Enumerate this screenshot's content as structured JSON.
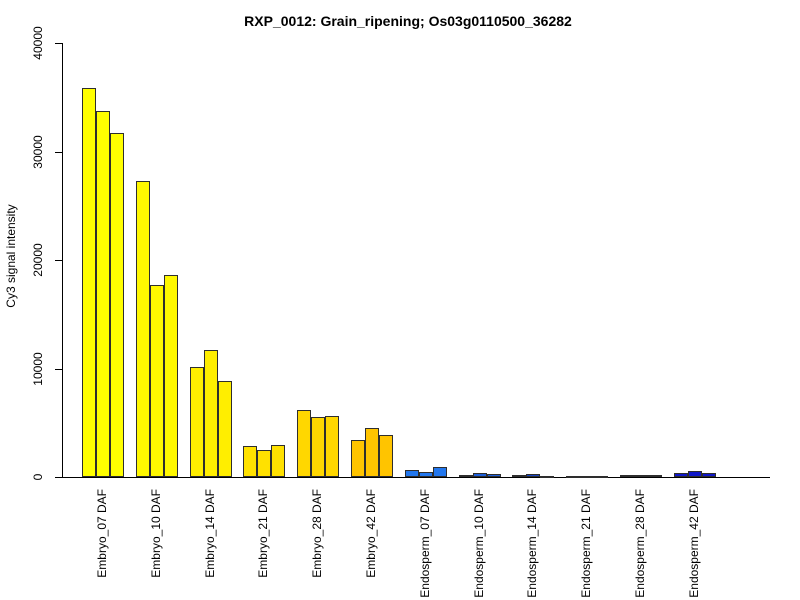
{
  "page": {
    "background": "#ffffff"
  },
  "chart_data": {
    "type": "bar",
    "title": "RXP_0012: Grain_ripening; Os03g0110500_36282",
    "ylabel": "Cy3 signal intensity",
    "xlabel": "",
    "ylim": [
      0,
      40000
    ],
    "yticks": [
      0,
      10000,
      20000,
      30000,
      40000
    ],
    "ytick_labels": [
      "0",
      "10000",
      "20000",
      "30000",
      "40000"
    ],
    "grid": false,
    "legend": "none",
    "axis_color": "#000000",
    "bar_border_color": "#2e2e2e",
    "bars_per_group": 3,
    "groups": [
      {
        "label": "Embryo_07 DAF",
        "color": "#FFFF00",
        "values": [
          35850,
          33700,
          31750
        ]
      },
      {
        "label": "Embryo_10 DAF",
        "color": "#FFF800",
        "values": [
          27300,
          17700,
          18600
        ]
      },
      {
        "label": "Embryo_14 DAF",
        "color": "#FFEE00",
        "values": [
          10100,
          11700,
          8850
        ]
      },
      {
        "label": "Embryo_21 DAF",
        "color": "#FFE100",
        "values": [
          2860,
          2450,
          2950
        ]
      },
      {
        "label": "Embryo_28 DAF",
        "color": "#FFD700",
        "values": [
          6180,
          5500,
          5650
        ]
      },
      {
        "label": "Embryo_42 DAF",
        "color": "#FFC400",
        "values": [
          3380,
          4490,
          3900
        ]
      },
      {
        "label": "Endosperm_07 DAF",
        "color": "#2277EE",
        "values": [
          670,
          460,
          900
        ]
      },
      {
        "label": "Endosperm_10 DAF",
        "color": "#1C5ED9",
        "values": [
          215,
          370,
          275
        ]
      },
      {
        "label": "Endosperm_14 DAF",
        "color": "#1743C0",
        "values": [
          150,
          280,
          110
        ]
      },
      {
        "label": "Endosperm_21 DAF",
        "color": "#161E6E",
        "values": [
          120,
          90,
          90
        ]
      },
      {
        "label": "Endosperm_28 DAF",
        "color": "#131FA6",
        "values": [
          230,
          180,
          180
        ]
      },
      {
        "label": "Endosperm_42 DAF",
        "color": "#0F17C8",
        "values": [
          340,
          520,
          340
        ]
      }
    ]
  }
}
